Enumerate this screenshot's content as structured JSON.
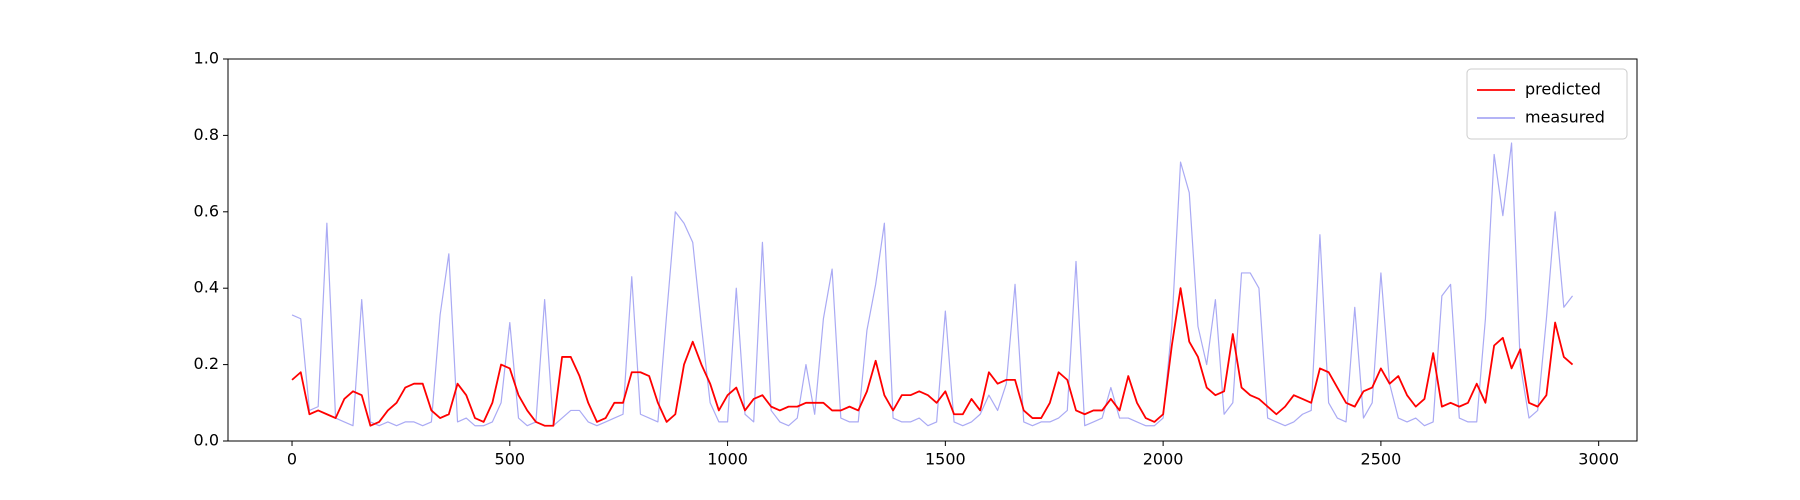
{
  "chart_data": {
    "type": "line",
    "x": [
      0,
      20,
      40,
      60,
      80,
      100,
      120,
      140,
      160,
      180,
      200,
      220,
      240,
      260,
      280,
      300,
      320,
      340,
      360,
      380,
      400,
      420,
      440,
      460,
      480,
      500,
      520,
      540,
      560,
      580,
      600,
      620,
      640,
      660,
      680,
      700,
      720,
      740,
      760,
      780,
      800,
      820,
      840,
      860,
      880,
      900,
      920,
      940,
      960,
      980,
      1000,
      1020,
      1040,
      1060,
      1080,
      1100,
      1120,
      1140,
      1160,
      1180,
      1200,
      1220,
      1240,
      1260,
      1280,
      1300,
      1320,
      1340,
      1360,
      1380,
      1400,
      1420,
      1440,
      1460,
      1480,
      1500,
      1520,
      1540,
      1560,
      1580,
      1600,
      1620,
      1640,
      1660,
      1680,
      1700,
      1720,
      1740,
      1760,
      1780,
      1800,
      1820,
      1840,
      1860,
      1880,
      1900,
      1920,
      1940,
      1960,
      1980,
      2000,
      2020,
      2040,
      2060,
      2080,
      2100,
      2120,
      2140,
      2160,
      2180,
      2200,
      2220,
      2240,
      2260,
      2280,
      2300,
      2320,
      2340,
      2360,
      2380,
      2400,
      2420,
      2440,
      2460,
      2480,
      2500,
      2520,
      2540,
      2560,
      2580,
      2600,
      2620,
      2640,
      2660,
      2680,
      2700,
      2720,
      2740,
      2760,
      2780,
      2800,
      2820,
      2840,
      2860,
      2880,
      2900,
      2920,
      2940
    ],
    "series": [
      {
        "name": "predicted",
        "color": "#ff0000",
        "values": [
          0.16,
          0.18,
          0.07,
          0.08,
          0.07,
          0.06,
          0.11,
          0.13,
          0.12,
          0.04,
          0.05,
          0.08,
          0.1,
          0.14,
          0.15,
          0.15,
          0.08,
          0.06,
          0.07,
          0.15,
          0.12,
          0.06,
          0.05,
          0.1,
          0.2,
          0.19,
          0.12,
          0.08,
          0.05,
          0.04,
          0.04,
          0.22,
          0.22,
          0.17,
          0.1,
          0.05,
          0.06,
          0.1,
          0.1,
          0.18,
          0.18,
          0.17,
          0.1,
          0.05,
          0.07,
          0.2,
          0.26,
          0.2,
          0.15,
          0.08,
          0.12,
          0.14,
          0.08,
          0.11,
          0.12,
          0.09,
          0.08,
          0.09,
          0.09,
          0.1,
          0.1,
          0.1,
          0.08,
          0.08,
          0.09,
          0.08,
          0.13,
          0.21,
          0.12,
          0.08,
          0.12,
          0.12,
          0.13,
          0.12,
          0.1,
          0.13,
          0.07,
          0.07,
          0.11,
          0.08,
          0.18,
          0.15,
          0.16,
          0.16,
          0.08,
          0.06,
          0.06,
          0.1,
          0.18,
          0.16,
          0.08,
          0.07,
          0.08,
          0.08,
          0.11,
          0.08,
          0.17,
          0.1,
          0.06,
          0.05,
          0.07,
          0.25,
          0.4,
          0.26,
          0.22,
          0.14,
          0.12,
          0.13,
          0.28,
          0.14,
          0.12,
          0.11,
          0.09,
          0.07,
          0.09,
          0.12,
          0.11,
          0.1,
          0.19,
          0.18,
          0.14,
          0.1,
          0.09,
          0.13,
          0.14,
          0.19,
          0.15,
          0.17,
          0.12,
          0.09,
          0.11,
          0.23,
          0.09,
          0.1,
          0.09,
          0.1,
          0.15,
          0.1,
          0.25,
          0.27,
          0.19,
          0.24,
          0.1,
          0.09,
          0.12,
          0.31,
          0.22,
          0.2
        ]
      },
      {
        "name": "measured",
        "color": "#aaaaf4",
        "values": [
          0.33,
          0.32,
          0.08,
          0.09,
          0.57,
          0.06,
          0.05,
          0.04,
          0.37,
          0.05,
          0.04,
          0.05,
          0.04,
          0.05,
          0.05,
          0.04,
          0.05,
          0.33,
          0.49,
          0.05,
          0.06,
          0.04,
          0.04,
          0.05,
          0.1,
          0.31,
          0.06,
          0.04,
          0.05,
          0.37,
          0.04,
          0.06,
          0.08,
          0.08,
          0.05,
          0.04,
          0.05,
          0.06,
          0.07,
          0.43,
          0.07,
          0.06,
          0.05,
          0.33,
          0.6,
          0.57,
          0.52,
          0.3,
          0.1,
          0.05,
          0.05,
          0.4,
          0.07,
          0.05,
          0.52,
          0.08,
          0.05,
          0.04,
          0.06,
          0.2,
          0.07,
          0.32,
          0.45,
          0.06,
          0.05,
          0.05,
          0.29,
          0.41,
          0.57,
          0.06,
          0.05,
          0.05,
          0.06,
          0.04,
          0.05,
          0.34,
          0.05,
          0.04,
          0.05,
          0.07,
          0.12,
          0.08,
          0.15,
          0.41,
          0.05,
          0.04,
          0.05,
          0.05,
          0.06,
          0.08,
          0.47,
          0.04,
          0.05,
          0.06,
          0.14,
          0.06,
          0.06,
          0.05,
          0.04,
          0.04,
          0.06,
          0.3,
          0.73,
          0.65,
          0.3,
          0.2,
          0.37,
          0.07,
          0.1,
          0.44,
          0.44,
          0.4,
          0.06,
          0.05,
          0.04,
          0.05,
          0.07,
          0.08,
          0.54,
          0.1,
          0.06,
          0.05,
          0.35,
          0.06,
          0.1,
          0.44,
          0.15,
          0.06,
          0.05,
          0.06,
          0.04,
          0.05,
          0.38,
          0.41,
          0.06,
          0.05,
          0.05,
          0.32,
          0.75,
          0.59,
          0.78,
          0.2,
          0.06,
          0.08,
          0.32,
          0.6,
          0.35,
          0.38
        ]
      }
    ],
    "xlim": [
      -147,
      3088
    ],
    "ylim": [
      0,
      1
    ],
    "xticks": [
      0,
      500,
      1000,
      1500,
      2000,
      2500,
      3000
    ],
    "yticks": [
      {
        "value": 0,
        "label": "0.0"
      },
      {
        "value": 0.2,
        "label": "0.2"
      },
      {
        "value": 0.4,
        "label": "0.4"
      },
      {
        "value": 0.6,
        "label": "0.6"
      },
      {
        "value": 0.8,
        "label": "0.8"
      },
      {
        "value": 1,
        "label": "1.0"
      }
    ],
    "grid": false,
    "legend": "upper right"
  }
}
